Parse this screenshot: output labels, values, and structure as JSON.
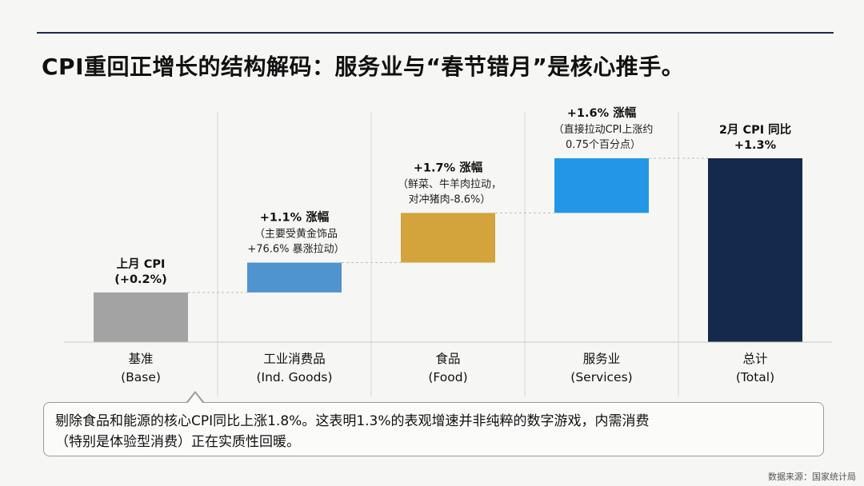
{
  "header": {
    "title": "CPI重回正增长的结构解码：服务业与“春节错月”是核心推手。"
  },
  "chart_data": {
    "type": "bar",
    "subtype": "waterfall",
    "ylim": [
      -0.8,
      1.6
    ],
    "grid": false,
    "categories": [
      {
        "line1": "基准",
        "line2": "(Base)"
      },
      {
        "line1": "工业消费品",
        "line2": "(Ind. Goods)"
      },
      {
        "line1": "食品",
        "line2": "(Food)"
      },
      {
        "line1": "服务业",
        "line2": "(Services)"
      },
      {
        "line1": "总计",
        "line2": "(Total)"
      }
    ],
    "bars": [
      {
        "start": -0.8,
        "end": -0.3,
        "color": "#a3a3a3",
        "label_title": "上月 CPI",
        "label_title2": "(+0.2%)",
        "label_lines": []
      },
      {
        "start": -0.3,
        "end": 0.0,
        "color": "#4f93cf",
        "label_title": "+1.1% 涨幅",
        "label_title2": "",
        "label_lines": [
          "（主要受黄金饰品",
          "+76.6% 暴涨拉动）"
        ]
      },
      {
        "start": 0.0,
        "end": 0.5,
        "color": "#d3a33c",
        "label_title": "+1.7% 涨幅",
        "label_title2": "",
        "label_lines": [
          "（鲜菜、牛羊肉拉动，",
          "对冲猪肉-8.6%）"
        ]
      },
      {
        "start": 0.5,
        "end": 1.05,
        "color": "#2396e8",
        "label_title": "+1.6% 涨幅",
        "label_title2": "",
        "label_lines": [
          "（直接拉动CPI上涨约",
          "0.75个百分点）"
        ]
      },
      {
        "start": -0.8,
        "end": 1.05,
        "color": "#15294d",
        "label_title": "2月 CPI 同比",
        "label_title2": "+1.3%",
        "label_lines": []
      }
    ]
  },
  "callout": {
    "line1": "剔除食品和能源的核心CPI同比上涨1.8%。这表明1.3%的表观增速并非纯粹的数字游戏，内需消费",
    "line2": "（特别是体验型消费）正在实质性回暖。"
  },
  "footer": {
    "source": "数据来源：国家统计局"
  }
}
